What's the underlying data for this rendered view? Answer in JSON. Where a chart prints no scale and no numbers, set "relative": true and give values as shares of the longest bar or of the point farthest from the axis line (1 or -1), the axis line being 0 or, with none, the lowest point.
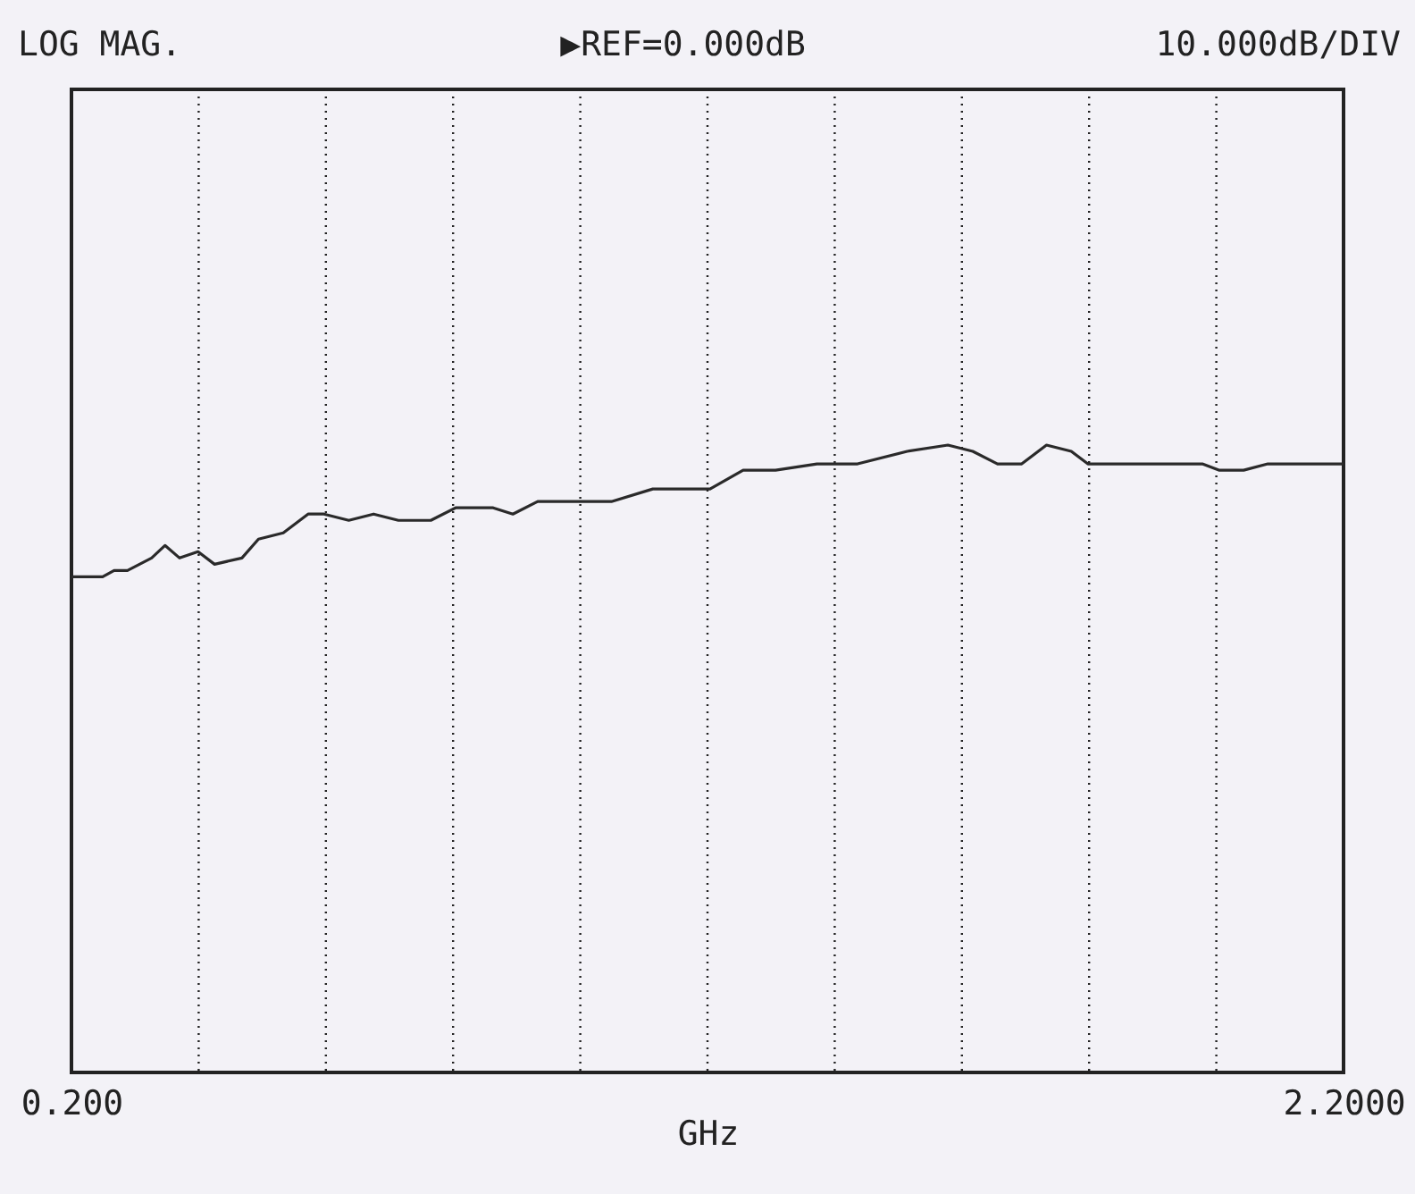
{
  "chart_data": {
    "type": "line",
    "annotations": [
      "LOG MAG.",
      "▶REF=0.000dB",
      "10.000dB/DIV"
    ],
    "xlabel": "GHz",
    "x": [
      0.2,
      0.249,
      0.267,
      0.288,
      0.326,
      0.347,
      0.37,
      0.399,
      0.425,
      0.468,
      0.494,
      0.533,
      0.572,
      0.597,
      0.636,
      0.675,
      0.714,
      0.765,
      0.804,
      0.863,
      0.894,
      0.933,
      0.997,
      1.049,
      1.114,
      1.152,
      1.178,
      1.204,
      1.256,
      1.307,
      1.372,
      1.397,
      1.436,
      1.514,
      1.578,
      1.617,
      1.656,
      1.694,
      1.72,
      1.733,
      1.772,
      1.798,
      1.849,
      1.914,
      1.978,
      2.004,
      2.043,
      2.081,
      2.2
    ],
    "values": [
      0.79,
      0.79,
      0.8,
      0.8,
      0.82,
      0.84,
      0.82,
      0.83,
      0.81,
      0.82,
      0.85,
      0.86,
      0.89,
      0.89,
      0.88,
      0.89,
      0.88,
      0.88,
      0.9,
      0.9,
      0.89,
      0.91,
      0.91,
      0.91,
      0.93,
      0.93,
      0.93,
      0.93,
      0.96,
      0.96,
      0.97,
      0.97,
      0.97,
      0.99,
      1,
      0.99,
      0.97,
      0.97,
      0.99,
      1,
      0.99,
      0.97,
      0.97,
      0.97,
      0.97,
      0.96,
      0.96,
      0.97,
      0.97
    ],
    "relative": true,
    "color": "#2a2a2a",
    "xlim": [
      0.2,
      2.2
    ],
    "xticks": [
      {
        "value": 0.2,
        "label": "0.200"
      },
      {
        "value": 0.4,
        "label": null
      },
      {
        "value": 0.6,
        "label": null
      },
      {
        "value": 0.8,
        "label": null
      },
      {
        "value": 1.0,
        "label": null
      },
      {
        "value": 1.2,
        "label": null
      },
      {
        "value": 1.4,
        "label": null
      },
      {
        "value": 1.6,
        "label": null
      },
      {
        "value": 1.8,
        "label": null
      },
      {
        "value": 2.0,
        "label": null
      },
      {
        "value": 2.2,
        "label": "2.2000"
      }
    ],
    "grid": "x",
    "tick_labels": "x",
    "marker": "none",
    "line_style": "solid"
  }
}
